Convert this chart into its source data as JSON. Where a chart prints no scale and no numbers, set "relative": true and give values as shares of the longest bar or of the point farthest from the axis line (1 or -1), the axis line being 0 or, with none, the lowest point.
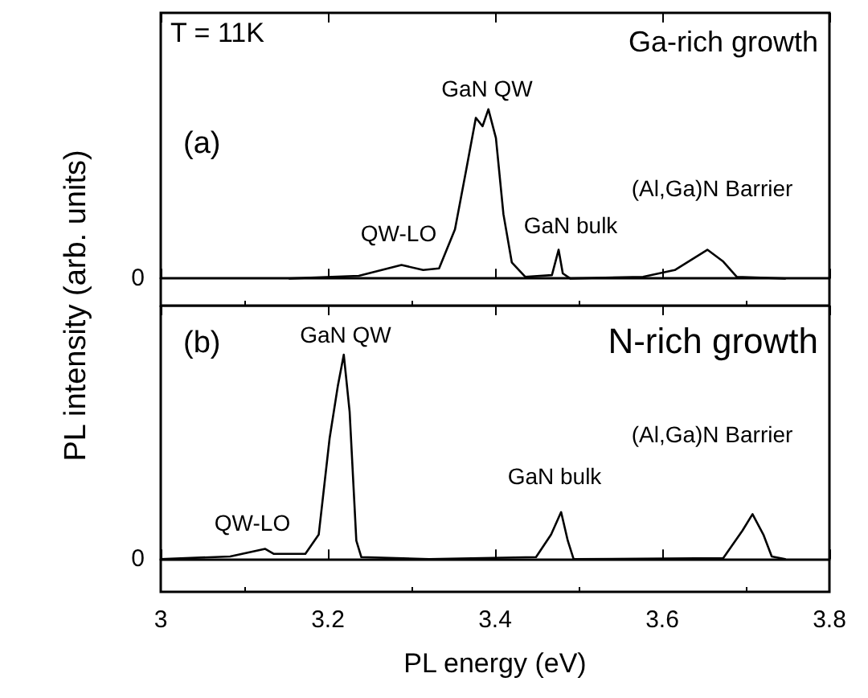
{
  "chart_data": [
    {
      "type": "line",
      "title": "Ga-rich growth",
      "ylabel": "PL intensity (arb. units)",
      "relative": true,
      "xlim": [
        3.0,
        3.8
      ],
      "xticks": [
        3.0,
        3.2,
        3.4,
        3.6,
        3.8
      ],
      "tick_labels": false,
      "grid": false,
      "marker": "none",
      "line_style": "solid",
      "annotations": [
        "T = 11K",
        "(a)",
        "QW-LO",
        "GaN QW",
        "GaN bulk",
        "(Al,Ga)N Barrier",
        "0"
      ],
      "series": [
        {
          "color": "#000000",
          "x": [
            3.154,
            3.237,
            3.288,
            3.314,
            3.333,
            3.352,
            3.365,
            3.377,
            3.385,
            3.392,
            3.401,
            3.41,
            3.42,
            3.436,
            3.468,
            3.476,
            3.481,
            3.49,
            3.577,
            3.615,
            3.654,
            3.673,
            3.689,
            3.747
          ],
          "values": [
            0,
            0.016,
            0.08,
            0.05,
            0.06,
            0.29,
            0.63,
            0.95,
            0.9,
            1.0,
            0.83,
            0.38,
            0.095,
            0.01,
            0.02,
            0.17,
            0.03,
            0,
            0.01,
            0.05,
            0.17,
            0.1,
            0.01,
            0
          ]
        }
      ]
    },
    {
      "type": "line",
      "title": "N-rich growth",
      "xlabel": "PL energy (eV)",
      "relative": true,
      "xlim": [
        3.0,
        3.8
      ],
      "xticks": [
        3.0,
        3.2,
        3.4,
        3.6,
        3.8
      ],
      "tick_labels": "x",
      "grid": false,
      "marker": "none",
      "line_style": "solid",
      "annotations": [
        "(b)",
        "QW-LO",
        "GaN QW",
        "GaN bulk",
        "(Al,Ga)N Barrier",
        "0"
      ],
      "series": [
        {
          "color": "#000000",
          "x": [
            3.0,
            3.083,
            3.125,
            3.135,
            3.173,
            3.189,
            3.202,
            3.212,
            3.219,
            3.226,
            3.234,
            3.24,
            3.321,
            3.449,
            3.467,
            3.479,
            3.487,
            3.494,
            3.673,
            3.696,
            3.708,
            3.721,
            3.731,
            3.747
          ],
          "values": [
            0,
            0.013,
            0.05,
            0.026,
            0.026,
            0.12,
            0.59,
            0.85,
            1.0,
            0.72,
            0.09,
            0.01,
            0,
            0.01,
            0.12,
            0.23,
            0.09,
            0,
            0.005,
            0.14,
            0.22,
            0.12,
            0.013,
            0
          ]
        }
      ]
    }
  ]
}
